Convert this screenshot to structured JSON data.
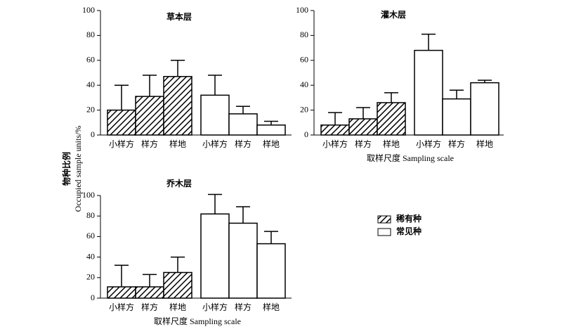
{
  "chart_data": [
    {
      "type": "bar",
      "title": "草本层",
      "categories": [
        "小样方",
        "样方",
        "样地"
      ],
      "series": [
        {
          "name": "稀有种",
          "color": "#000000",
          "pattern": "hatch",
          "values": [
            20,
            31,
            47
          ],
          "errors": [
            20,
            17,
            13
          ]
        },
        {
          "name": "常见种",
          "color": "#ffffff",
          "values": [
            32,
            17,
            8
          ],
          "errors": [
            16,
            6,
            3
          ]
        }
      ],
      "ylim": [
        0,
        100
      ],
      "yticks": [
        0,
        20,
        40,
        60,
        80,
        100
      ]
    },
    {
      "type": "bar",
      "title": "灌木层",
      "xlabel": "取样尺度 Sampling scale",
      "categories": [
        "小样方",
        "样方",
        "样地"
      ],
      "series": [
        {
          "name": "稀有种",
          "color": "#000000",
          "pattern": "hatch",
          "values": [
            8,
            13,
            26
          ],
          "errors": [
            10,
            9,
            8
          ]
        },
        {
          "name": "常见种",
          "color": "#ffffff",
          "values": [
            68,
            29,
            42
          ],
          "errors": [
            13,
            7,
            2
          ]
        }
      ],
      "ylim": [
        0,
        100
      ],
      "yticks": [
        0,
        20,
        40,
        60,
        80,
        100
      ]
    },
    {
      "type": "bar",
      "title": "乔木层",
      "xlabel": "取样尺度 Sampling scale",
      "categories": [
        "小样方",
        "样方",
        "样地"
      ],
      "series": [
        {
          "name": "稀有种",
          "color": "#000000",
          "pattern": "hatch",
          "values": [
            11,
            11,
            25
          ],
          "errors": [
            21,
            12,
            15
          ]
        },
        {
          "name": "常见种",
          "color": "#ffffff",
          "values": [
            82,
            73,
            53
          ],
          "errors": [
            19,
            16,
            12
          ]
        }
      ],
      "ylim": [
        0,
        100
      ],
      "yticks": [
        0,
        20,
        40,
        60,
        80,
        100
      ]
    }
  ],
  "ylabel_cn": "物种比例",
  "ylabel_en": "Occupied sample units/%"
}
